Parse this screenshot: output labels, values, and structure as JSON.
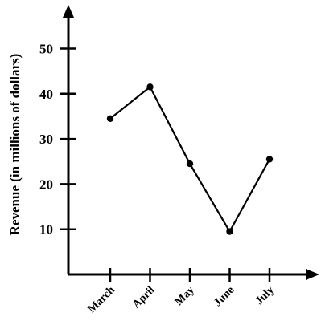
{
  "chart_data": {
    "type": "line",
    "title": "",
    "xlabel": "",
    "ylabel": "Revenue (in millions of dollars)",
    "categories": [
      "March",
      "April",
      "May",
      "June",
      "July"
    ],
    "series": [
      {
        "values": [
          34.5,
          41.5,
          24.5,
          9.5,
          25.5
        ]
      }
    ],
    "ylim": [
      0,
      55
    ],
    "yticks": [
      10,
      20,
      30,
      40,
      50
    ],
    "grid": false,
    "colors": {
      "line": "#000000",
      "axis": "#000000"
    }
  }
}
